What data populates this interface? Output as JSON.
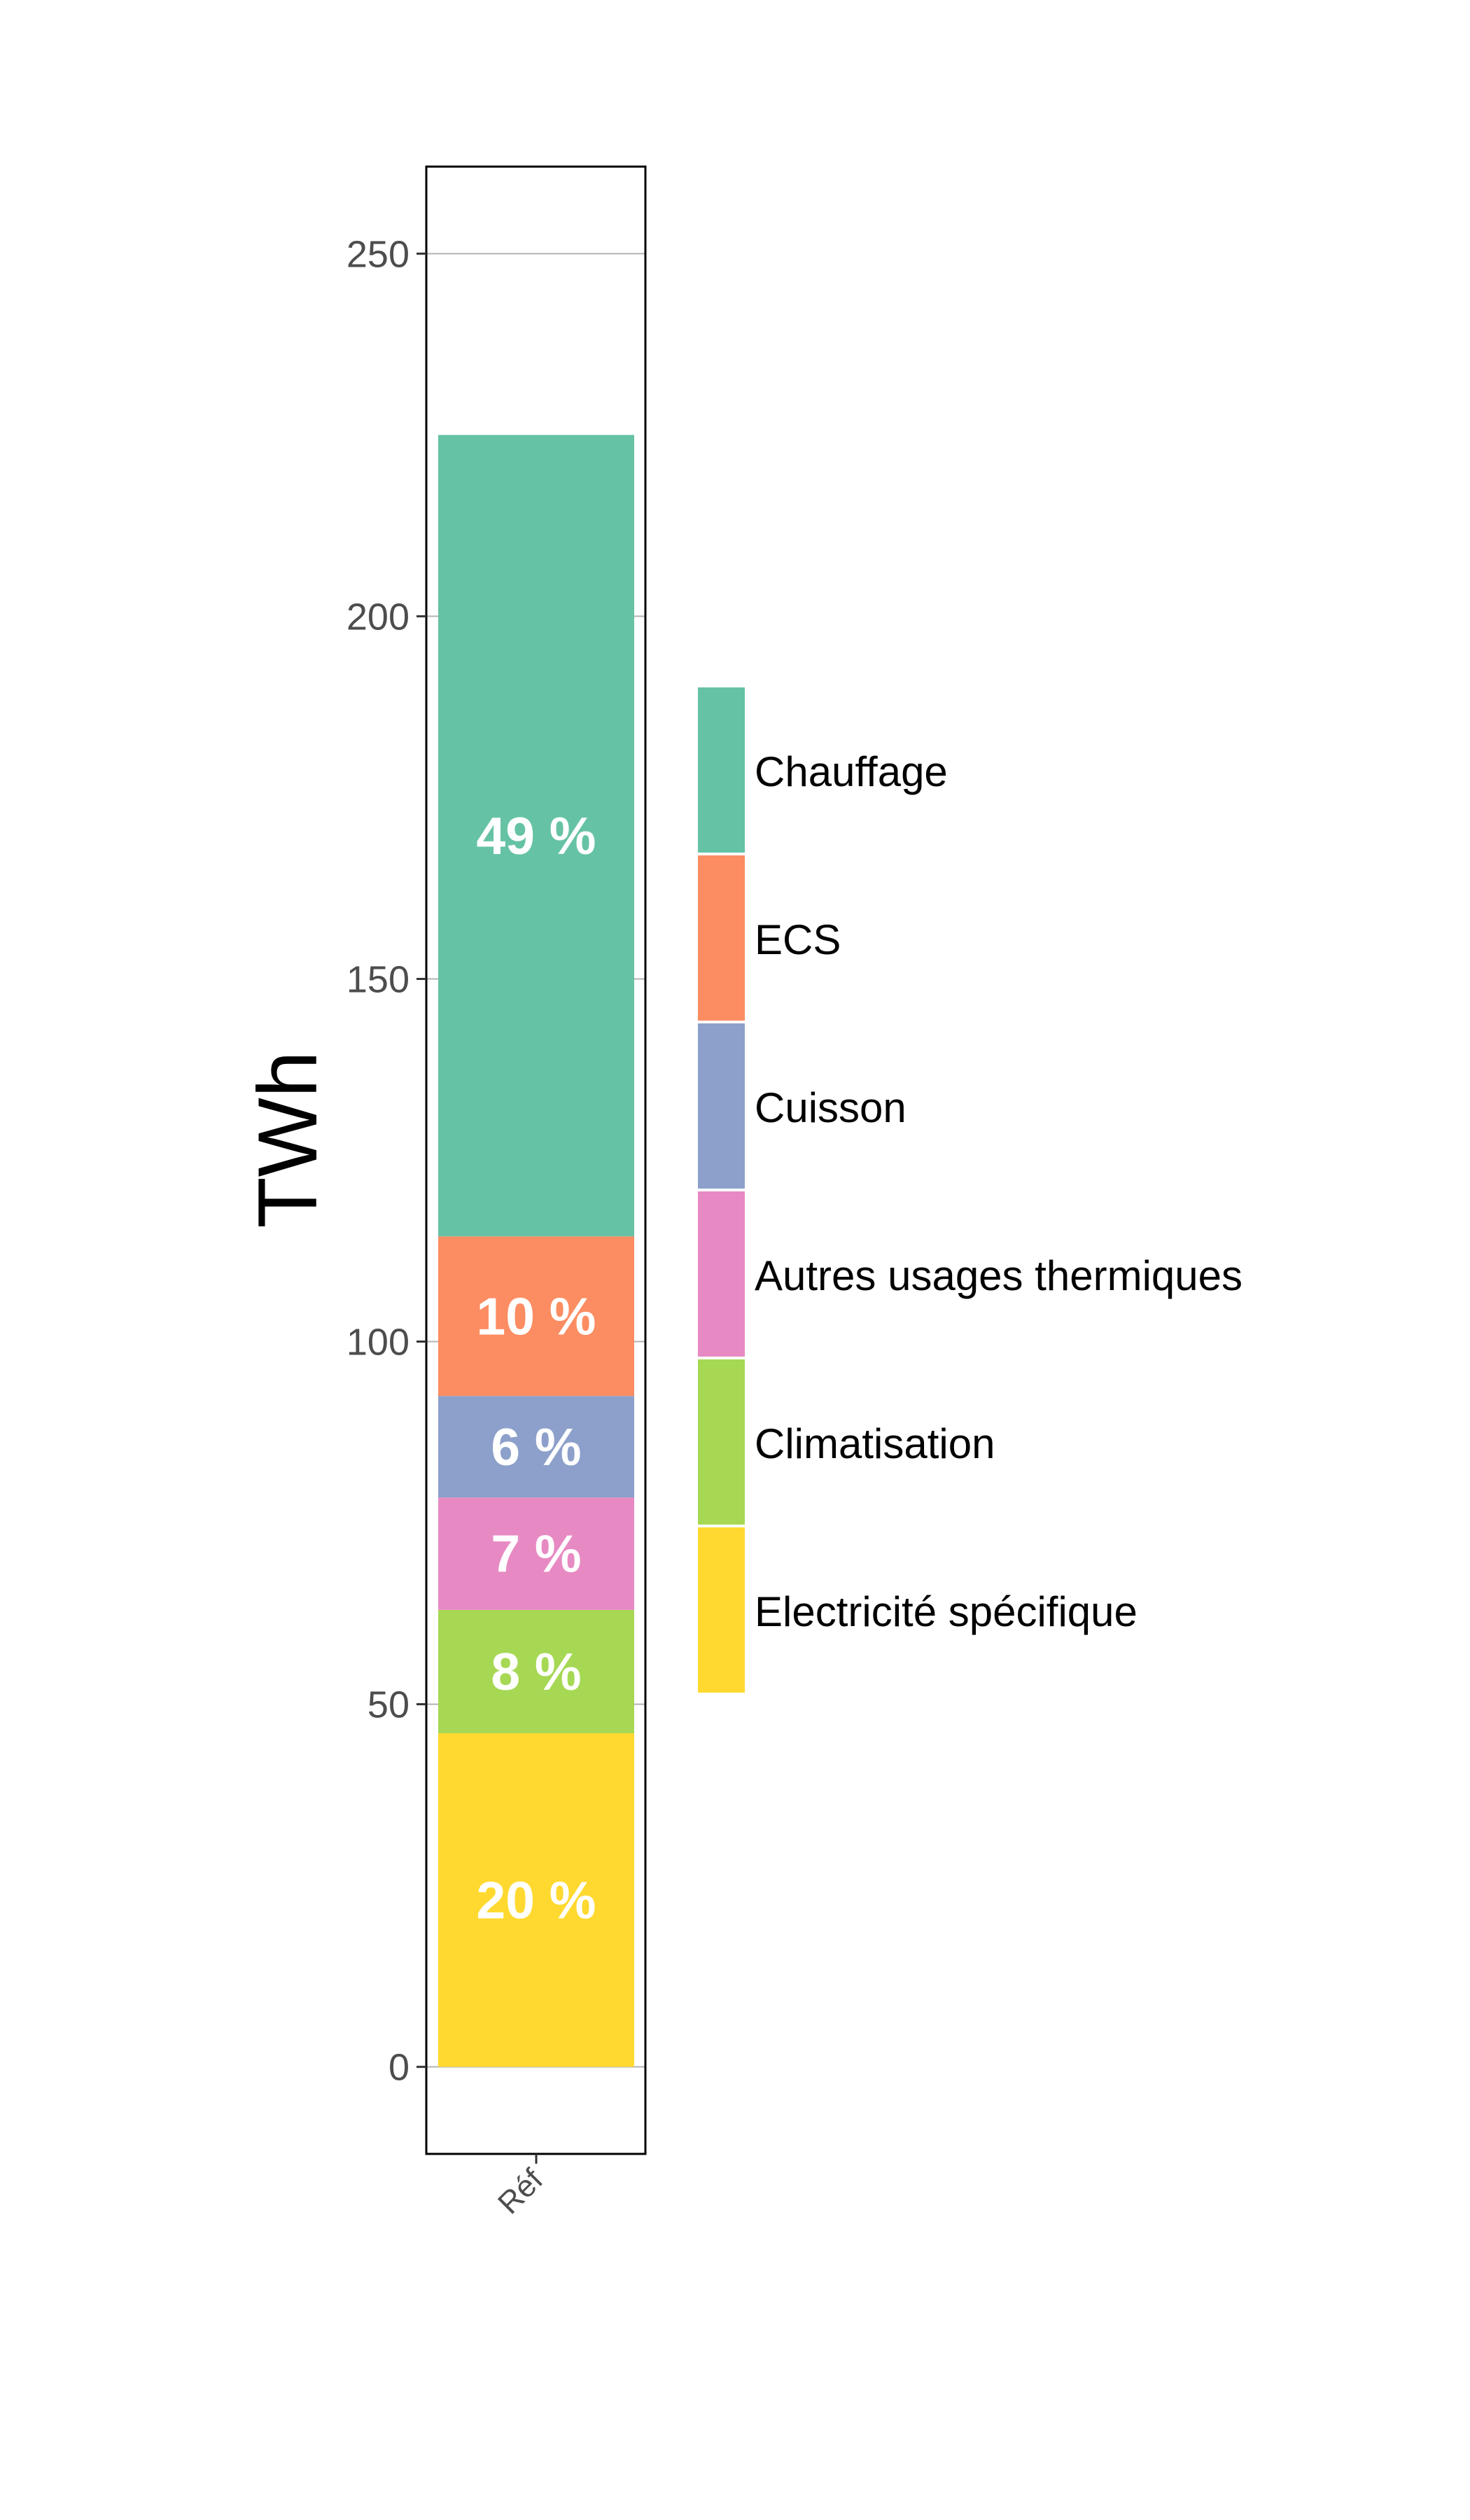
{
  "chart_data": {
    "type": "bar",
    "stacked": true,
    "categories": [
      "Réf"
    ],
    "ylabel": "TWh",
    "xlabel": "",
    "ylim": [
      -12,
      262
    ],
    "yticks": [
      0,
      50,
      100,
      150,
      200,
      250
    ],
    "ytick_labels": [
      "0",
      "50",
      "100",
      "150",
      "200",
      "250"
    ],
    "grid": "horizontal major",
    "legend_position": "right",
    "series": [
      {
        "name": "Electricité spécifique",
        "values": [
          46
        ],
        "label": "20 %",
        "color": "#FFD92F"
      },
      {
        "name": "Climatisation",
        "values": [
          17
        ],
        "label": "8 %",
        "color": "#A6D854"
      },
      {
        "name": "Autres usages thermiques",
        "values": [
          15.5
        ],
        "label": "7 %",
        "color": "#E78AC3"
      },
      {
        "name": "Cuisson",
        "values": [
          14
        ],
        "label": "6 %",
        "color": "#8DA0CB"
      },
      {
        "name": "ECS",
        "values": [
          22
        ],
        "label": "10 %",
        "color": "#FC8D62"
      },
      {
        "name": "Chauffage",
        "values": [
          110.5
        ],
        "label": "49 %",
        "color": "#66C2A5"
      }
    ],
    "legend_order": [
      "Chauffage",
      "ECS",
      "Cuisson",
      "Autres usages thermiques",
      "Climatisation",
      "Electricité spécifique"
    ]
  }
}
